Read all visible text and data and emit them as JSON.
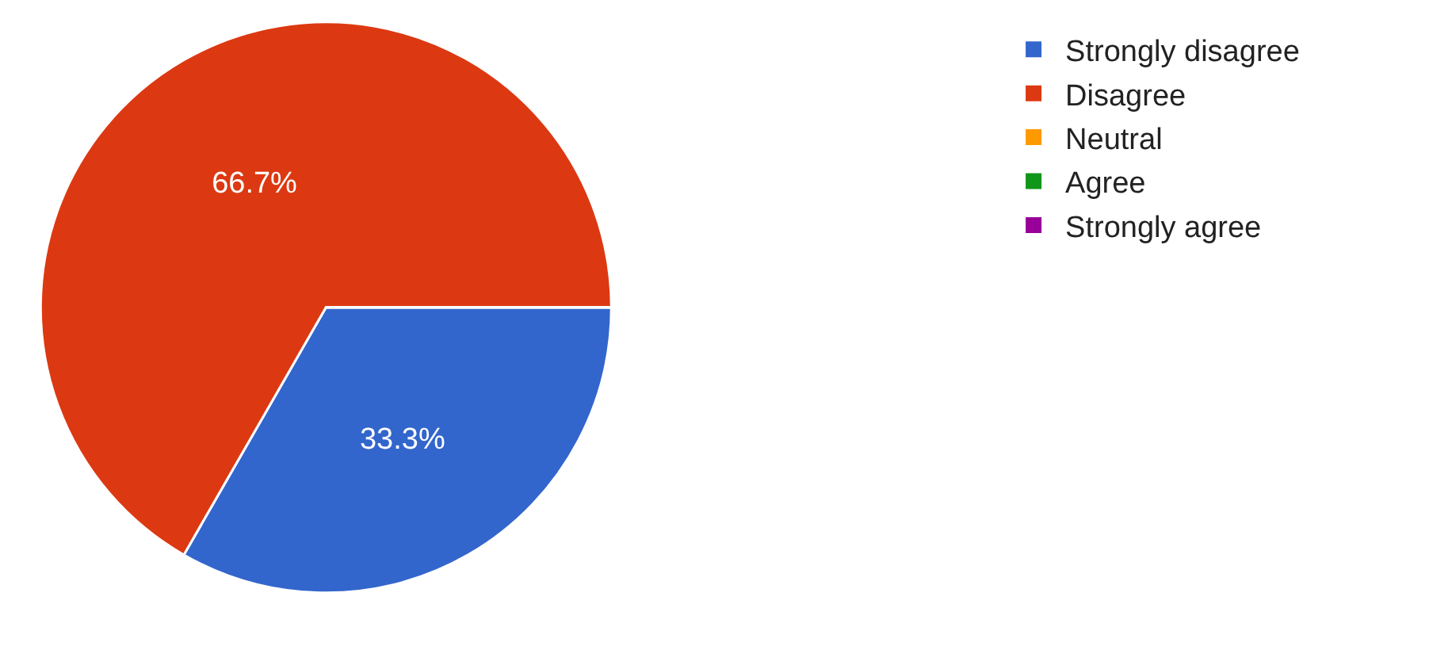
{
  "chart_data": {
    "type": "pie",
    "categories": [
      "Strongly disagree",
      "Disagree",
      "Neutral",
      "Agree",
      "Strongly agree"
    ],
    "values": [
      33.3,
      66.7,
      0,
      0,
      0
    ],
    "colors": [
      "#3366cc",
      "#dc3912",
      "#ff9900",
      "#109618",
      "#990099"
    ],
    "value_labels": [
      "33.3%",
      "66.7%",
      null,
      null,
      null
    ],
    "legend": "top right"
  }
}
